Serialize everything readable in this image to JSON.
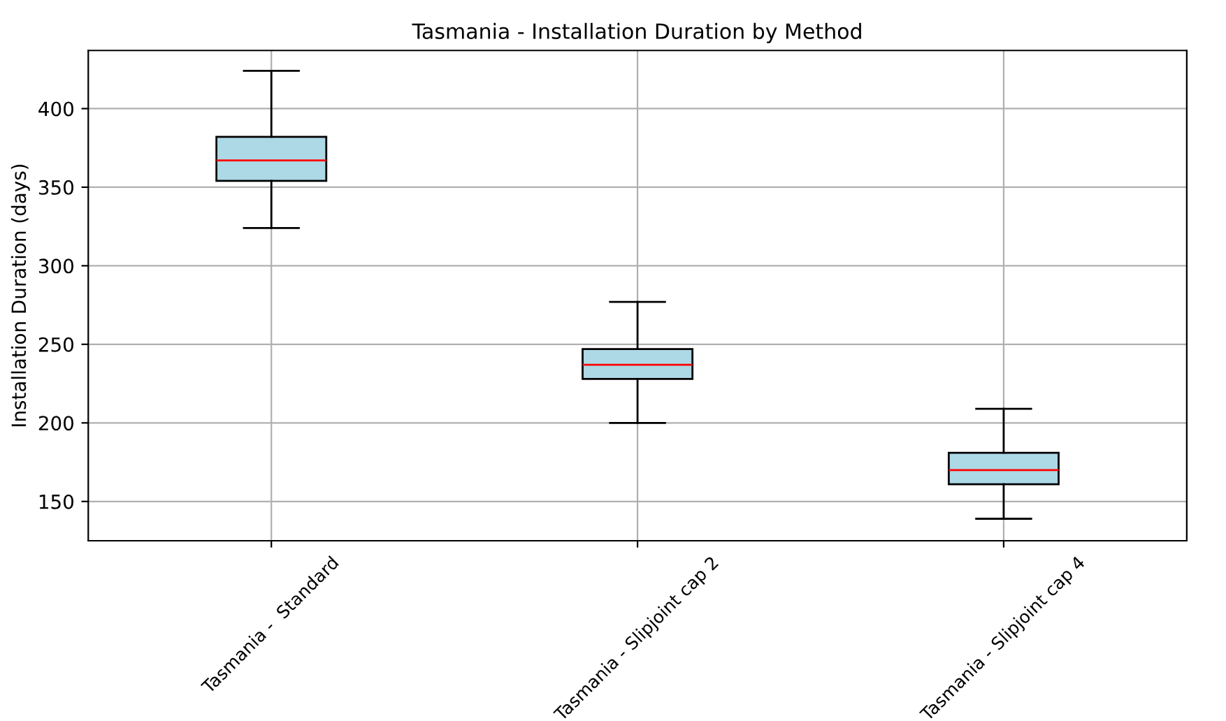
{
  "chart_data": {
    "type": "box",
    "title": "Tasmania - Installation Duration by Method",
    "ylabel": "Installation Duration (days)",
    "categories": [
      "Tasmania -  Standard",
      "Tasmania - Slipjoint cap 2",
      "Tasmania - Slipjoint cap 4"
    ],
    "boxes": [
      {
        "low": 324,
        "q1": 354,
        "median": 367,
        "q3": 382,
        "high": 424
      },
      {
        "low": 200,
        "q1": 228,
        "median": 237,
        "q3": 247,
        "high": 277
      },
      {
        "low": 139,
        "q1": 161,
        "median": 170,
        "q3": 181,
        "high": 209
      }
    ],
    "color": "#add8e6",
    "ylim": [
      125,
      437
    ],
    "yticks": [
      150,
      200,
      250,
      300,
      350,
      400
    ],
    "grid": true
  }
}
